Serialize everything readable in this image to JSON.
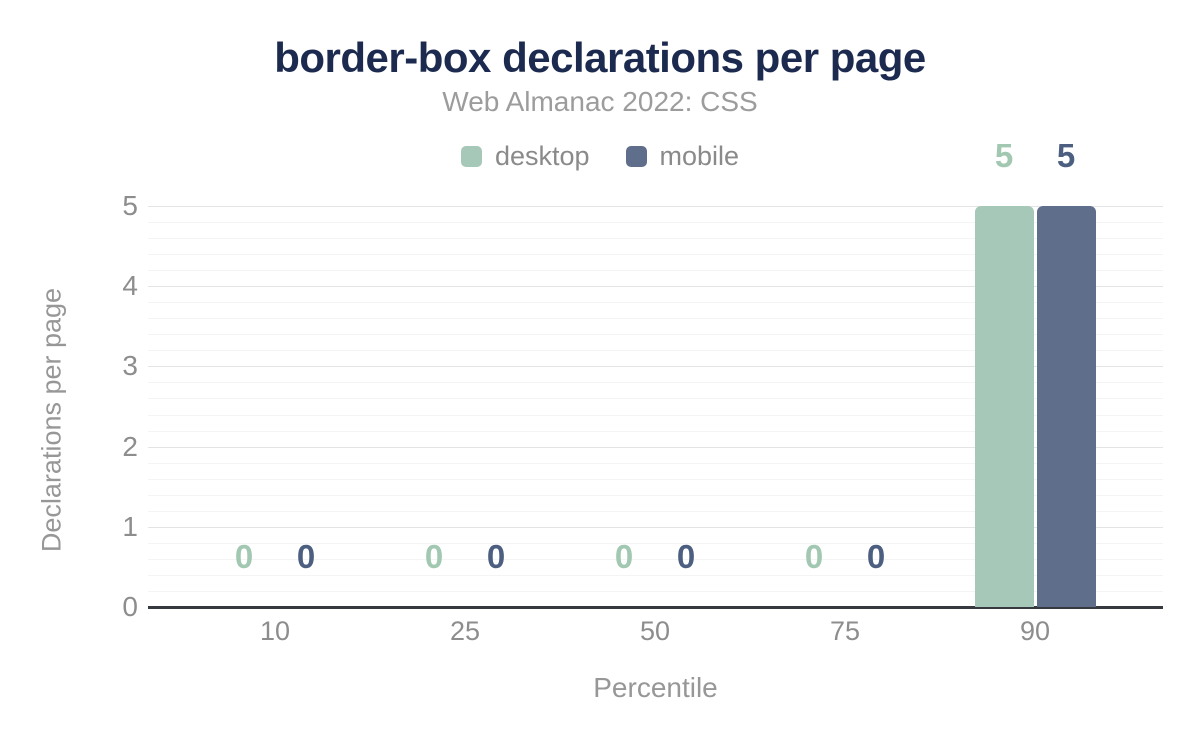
{
  "header": {
    "title": "border-box declarations per page",
    "subtitle": "Web Almanac 2022: CSS"
  },
  "axes": {
    "x_title": "Percentile",
    "y_title": "Declarations per page",
    "x_tick_labels": [
      "10",
      "25",
      "50",
      "75",
      "90"
    ],
    "y_tick_labels": [
      "0",
      "1",
      "2",
      "3",
      "4",
      "5"
    ]
  },
  "colors": {
    "title": "#1b2a4e",
    "subtitle": "#9c9c9c",
    "tick_text": "#8d8d8d",
    "axis_title_text": "#979797",
    "legend_text": "#8a8a8a",
    "major_grid": "#e4e4e4",
    "minor_grid": "#f4f4f4",
    "axis_line": "#36393f",
    "desktop": "#a6c8b8",
    "mobile": "#5f6e8a",
    "desktop_label": "#a2c8b2",
    "mobile_label": "#4c5f80"
  },
  "chart_data": {
    "type": "bar",
    "title": "border-box declarations per page",
    "subtitle": "Web Almanac 2022: CSS",
    "xlabel": "Percentile",
    "ylabel": "Declarations per page",
    "categories": [
      "10",
      "25",
      "50",
      "75",
      "90"
    ],
    "series": [
      {
        "name": "desktop",
        "color": "#a6c8b8",
        "label_color": "#a2c8b2",
        "values": [
          0,
          0,
          0,
          0,
          5
        ]
      },
      {
        "name": "mobile",
        "color": "#5f6e8a",
        "label_color": "#4c5f80",
        "values": [
          0,
          0,
          0,
          0,
          5
        ]
      }
    ],
    "ylim": [
      0,
      5
    ],
    "y_ticks": [
      0,
      1,
      2,
      3,
      4,
      5
    ],
    "minor_tick_step": 0.2,
    "grid": true,
    "legend_position": "top",
    "data_labels": true
  }
}
